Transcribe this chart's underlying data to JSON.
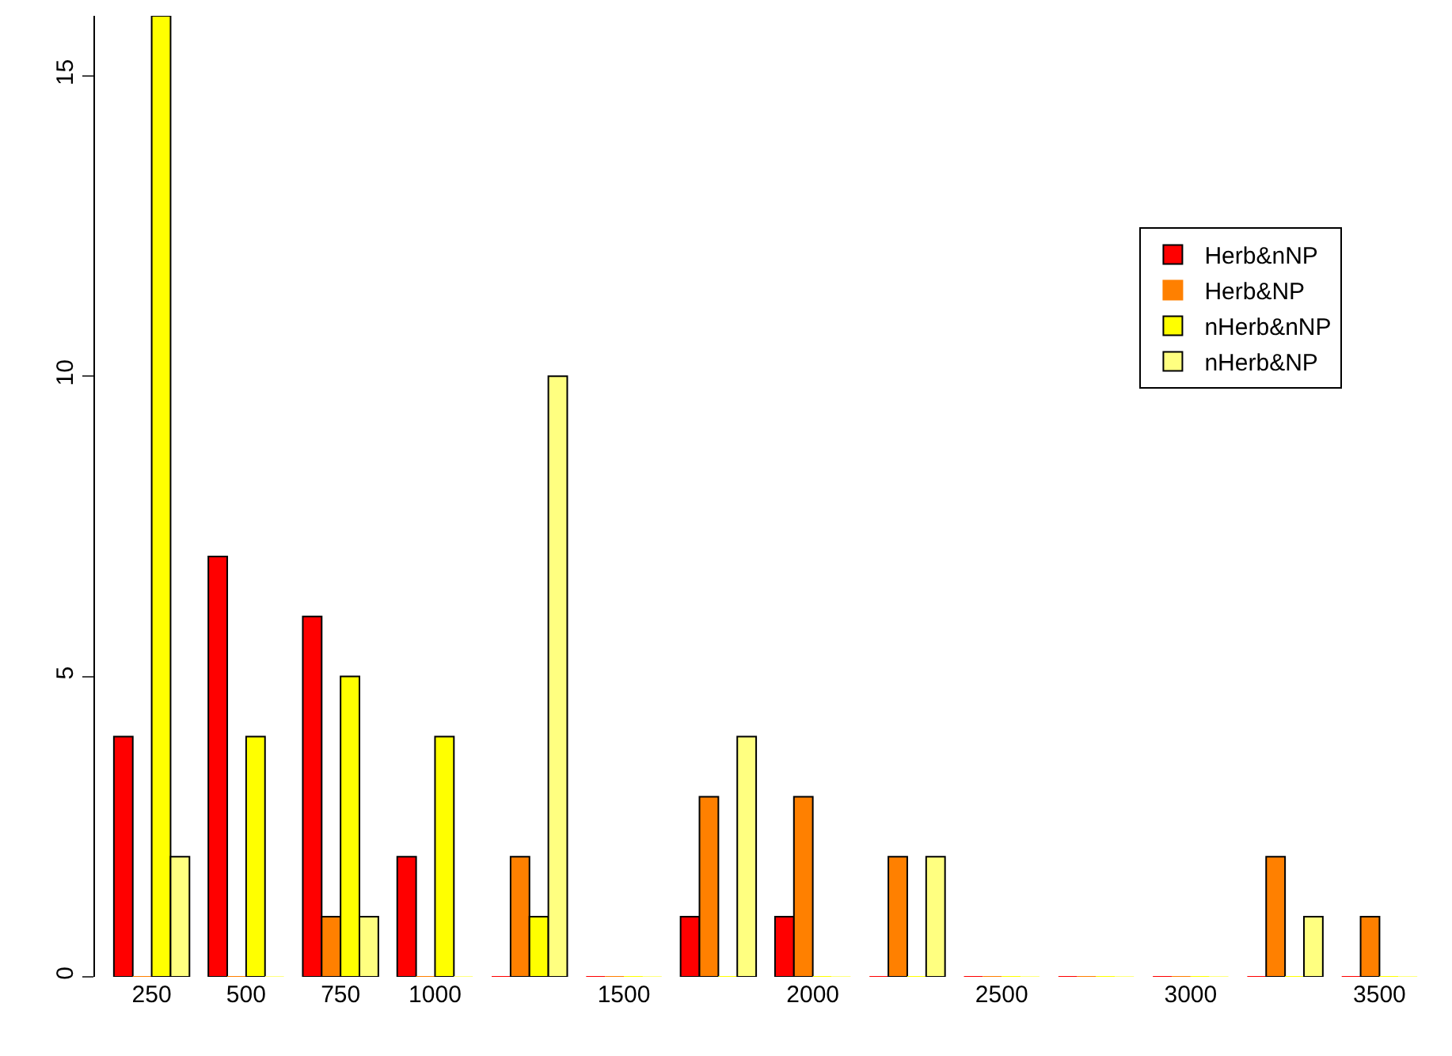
{
  "chart_data": {
    "type": "bar",
    "categories": [
      "250",
      "500",
      "750",
      "1000",
      null,
      "1500",
      null,
      "2000",
      null,
      "2500",
      null,
      "3000",
      null,
      "3500"
    ],
    "series": [
      {
        "name": "Herb&nNP",
        "color": "#ff0000",
        "values": [
          4,
          7,
          6,
          2,
          0,
          0,
          1,
          1,
          0,
          0,
          0,
          0,
          0,
          0
        ]
      },
      {
        "name": "Herb&NP",
        "color": "#ff8000",
        "values": [
          0,
          0,
          1,
          0,
          2,
          0,
          3,
          3,
          2,
          0,
          0,
          0,
          2,
          1
        ]
      },
      {
        "name": "nHerb&nNP",
        "color": "#ffff00",
        "values": [
          16,
          4,
          5,
          4,
          1,
          0,
          0,
          0,
          0,
          0,
          0,
          0,
          0,
          0
        ]
      },
      {
        "name": "nHerb&NP",
        "color": "#ffff80",
        "values": [
          2,
          0,
          1,
          0,
          10,
          0,
          4,
          0,
          2,
          0,
          0,
          0,
          1,
          0
        ]
      }
    ],
    "ylim": [
      0,
      16
    ],
    "yticks": [
      0,
      5,
      10,
      15
    ],
    "legend": "top right"
  }
}
